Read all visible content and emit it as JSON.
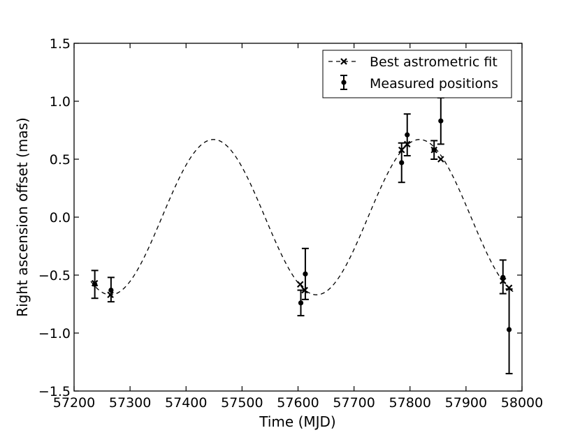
{
  "chart_data": {
    "type": "scatter",
    "xlabel": "Time (MJD)",
    "ylabel": "Right ascension offset (mas)",
    "xlim": [
      57200,
      58000
    ],
    "ylim": [
      -1.5,
      1.5
    ],
    "xticks": [
      57200,
      57300,
      57400,
      57500,
      57600,
      57700,
      57800,
      57900,
      58000
    ],
    "yticks": [
      1.5,
      1.0,
      0.5,
      0.0,
      -0.5,
      -1.0,
      -1.5
    ],
    "xtick_labels": [
      "57200",
      "57300",
      "57400",
      "57500",
      "57600",
      "57700",
      "57800",
      "57900",
      "58000"
    ],
    "ytick_labels": [
      "1.5",
      "1.0",
      "0.5",
      "0.0",
      "−0.5",
      "−1.0",
      "−1.5"
    ],
    "grid": false,
    "legend_position": "top-right",
    "series": [
      {
        "name": "Best astrometric fit",
        "style": "dashed-line-with-x-markers",
        "curve": {
          "amplitude": 0.67,
          "period": 368,
          "phase_reference_x": 57449
        },
        "x": [
          57237,
          57265,
          57604,
          57612,
          57785,
          57795,
          57843,
          57855,
          57966,
          57977
        ],
        "y": [
          -0.57,
          -0.67,
          -0.58,
          -0.63,
          0.58,
          0.63,
          0.58,
          0.5,
          -0.55,
          -0.61
        ]
      },
      {
        "name": "Measured positions",
        "style": "points-with-errorbars",
        "x": [
          57237,
          57266,
          57605,
          57613,
          57785,
          57795,
          57843,
          57855,
          57966,
          57977
        ],
        "y": [
          -0.58,
          -0.63,
          -0.74,
          -0.49,
          0.47,
          0.71,
          0.58,
          0.83,
          -0.52,
          -0.97
        ],
        "err_low": [
          0.12,
          0.1,
          0.11,
          0.22,
          0.17,
          0.18,
          0.08,
          0.2,
          0.14,
          0.38
        ],
        "err_high": [
          0.12,
          0.11,
          0.11,
          0.22,
          0.17,
          0.18,
          0.08,
          0.2,
          0.15,
          0.35
        ]
      }
    ]
  }
}
